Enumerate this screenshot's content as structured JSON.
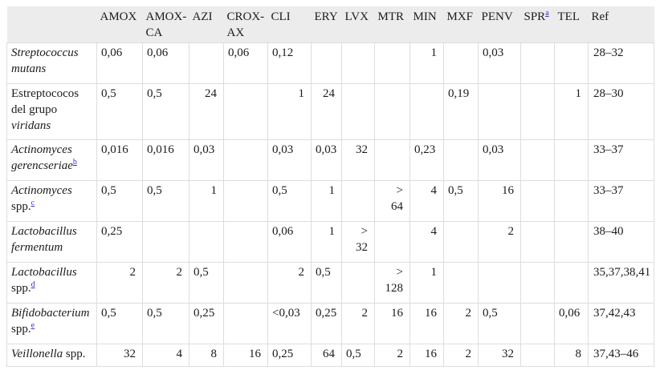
{
  "colors": {
    "link": "#3333cc",
    "header_bg": "#ececec",
    "grid": "#dddddd",
    "text": "#1b1b1b"
  },
  "table": {
    "columns": [
      {
        "label": ""
      },
      {
        "label": "AMOX"
      },
      {
        "label": "AMOX-CA"
      },
      {
        "label": "AZI"
      },
      {
        "label": "CROX-AX"
      },
      {
        "label": "CLI"
      },
      {
        "label": "ERY"
      },
      {
        "label": "LVX"
      },
      {
        "label": "MTR"
      },
      {
        "label": "MIN"
      },
      {
        "label": "MXF"
      },
      {
        "label": "PENV"
      },
      {
        "label": "SPR",
        "sup": "a"
      },
      {
        "label": "TEL"
      },
      {
        "label": "Ref"
      }
    ],
    "rows": [
      {
        "species": [
          {
            "t": "Streptococcus mutans",
            "i": true
          }
        ],
        "sup": "",
        "values": [
          "0,06",
          "0,06",
          "",
          "0,06",
          "0,12",
          "",
          "",
          "",
          "1",
          "",
          "0,03",
          "",
          ""
        ],
        "ref": "28–32"
      },
      {
        "species": [
          {
            "t": "Estreptococos del grupo ",
            "i": false
          },
          {
            "t": "viridans",
            "i": true
          }
        ],
        "sup": "",
        "values": [
          "0,5",
          "0,5",
          "24",
          "",
          "1",
          "24",
          "",
          "",
          "",
          "0,19",
          "",
          "",
          "1"
        ],
        "ref": "28–30"
      },
      {
        "species": [
          {
            "t": "Actinomyces gerencseriae",
            "i": true
          }
        ],
        "sup": "b",
        "values": [
          "0,016",
          "0,016",
          "0,03",
          "",
          "0,03",
          "0,03",
          "32",
          "",
          "0,23",
          "",
          "0,03",
          "",
          ""
        ],
        "ref": "33–37"
      },
      {
        "species": [
          {
            "t": "Actinomyces",
            "i": true
          },
          {
            "t": " spp.",
            "i": false
          }
        ],
        "sup": "c",
        "values": [
          "0,5",
          "0,5",
          "1",
          "",
          "0,5",
          "1",
          "",
          ">\n64",
          "4",
          "0,5",
          "16",
          "",
          ""
        ],
        "ref": "33–37"
      },
      {
        "species": [
          {
            "t": "Lactobacillus fermentum",
            "i": true
          }
        ],
        "sup": "",
        "values": [
          "0,25",
          "",
          "",
          "",
          "0,06",
          "1",
          ">\n32",
          "",
          "4",
          "",
          "2",
          "",
          ""
        ],
        "ref": "38–40"
      },
      {
        "species": [
          {
            "t": "Lactobacillus",
            "i": true
          },
          {
            "t": " spp.",
            "i": false
          }
        ],
        "sup": "d",
        "values": [
          "2",
          "2",
          "0,5",
          "",
          "2",
          "0,5",
          "",
          ">\n128",
          "1",
          "",
          "",
          "",
          ""
        ],
        "ref": "35,37,38,41"
      },
      {
        "species": [
          {
            "t": "Bifidobacterium",
            "i": true
          },
          {
            "t": " spp.",
            "i": false
          }
        ],
        "sup": "e",
        "values": [
          "0,5",
          "0,5",
          "0,25",
          "",
          "<0,03",
          "0,25",
          "2",
          "16",
          "16",
          "2",
          "0,5",
          "",
          "0,06"
        ],
        "ref": "37,42,43"
      },
      {
        "species": [
          {
            "t": "Veillonella",
            "i": true
          },
          {
            "t": " spp.",
            "i": false
          }
        ],
        "sup": "",
        "values": [
          "32",
          "4",
          "8",
          "16",
          "0,25",
          "64",
          "0,5",
          "2",
          "16",
          "2",
          "32",
          "",
          "8"
        ],
        "ref": "37,43–46"
      }
    ]
  }
}
